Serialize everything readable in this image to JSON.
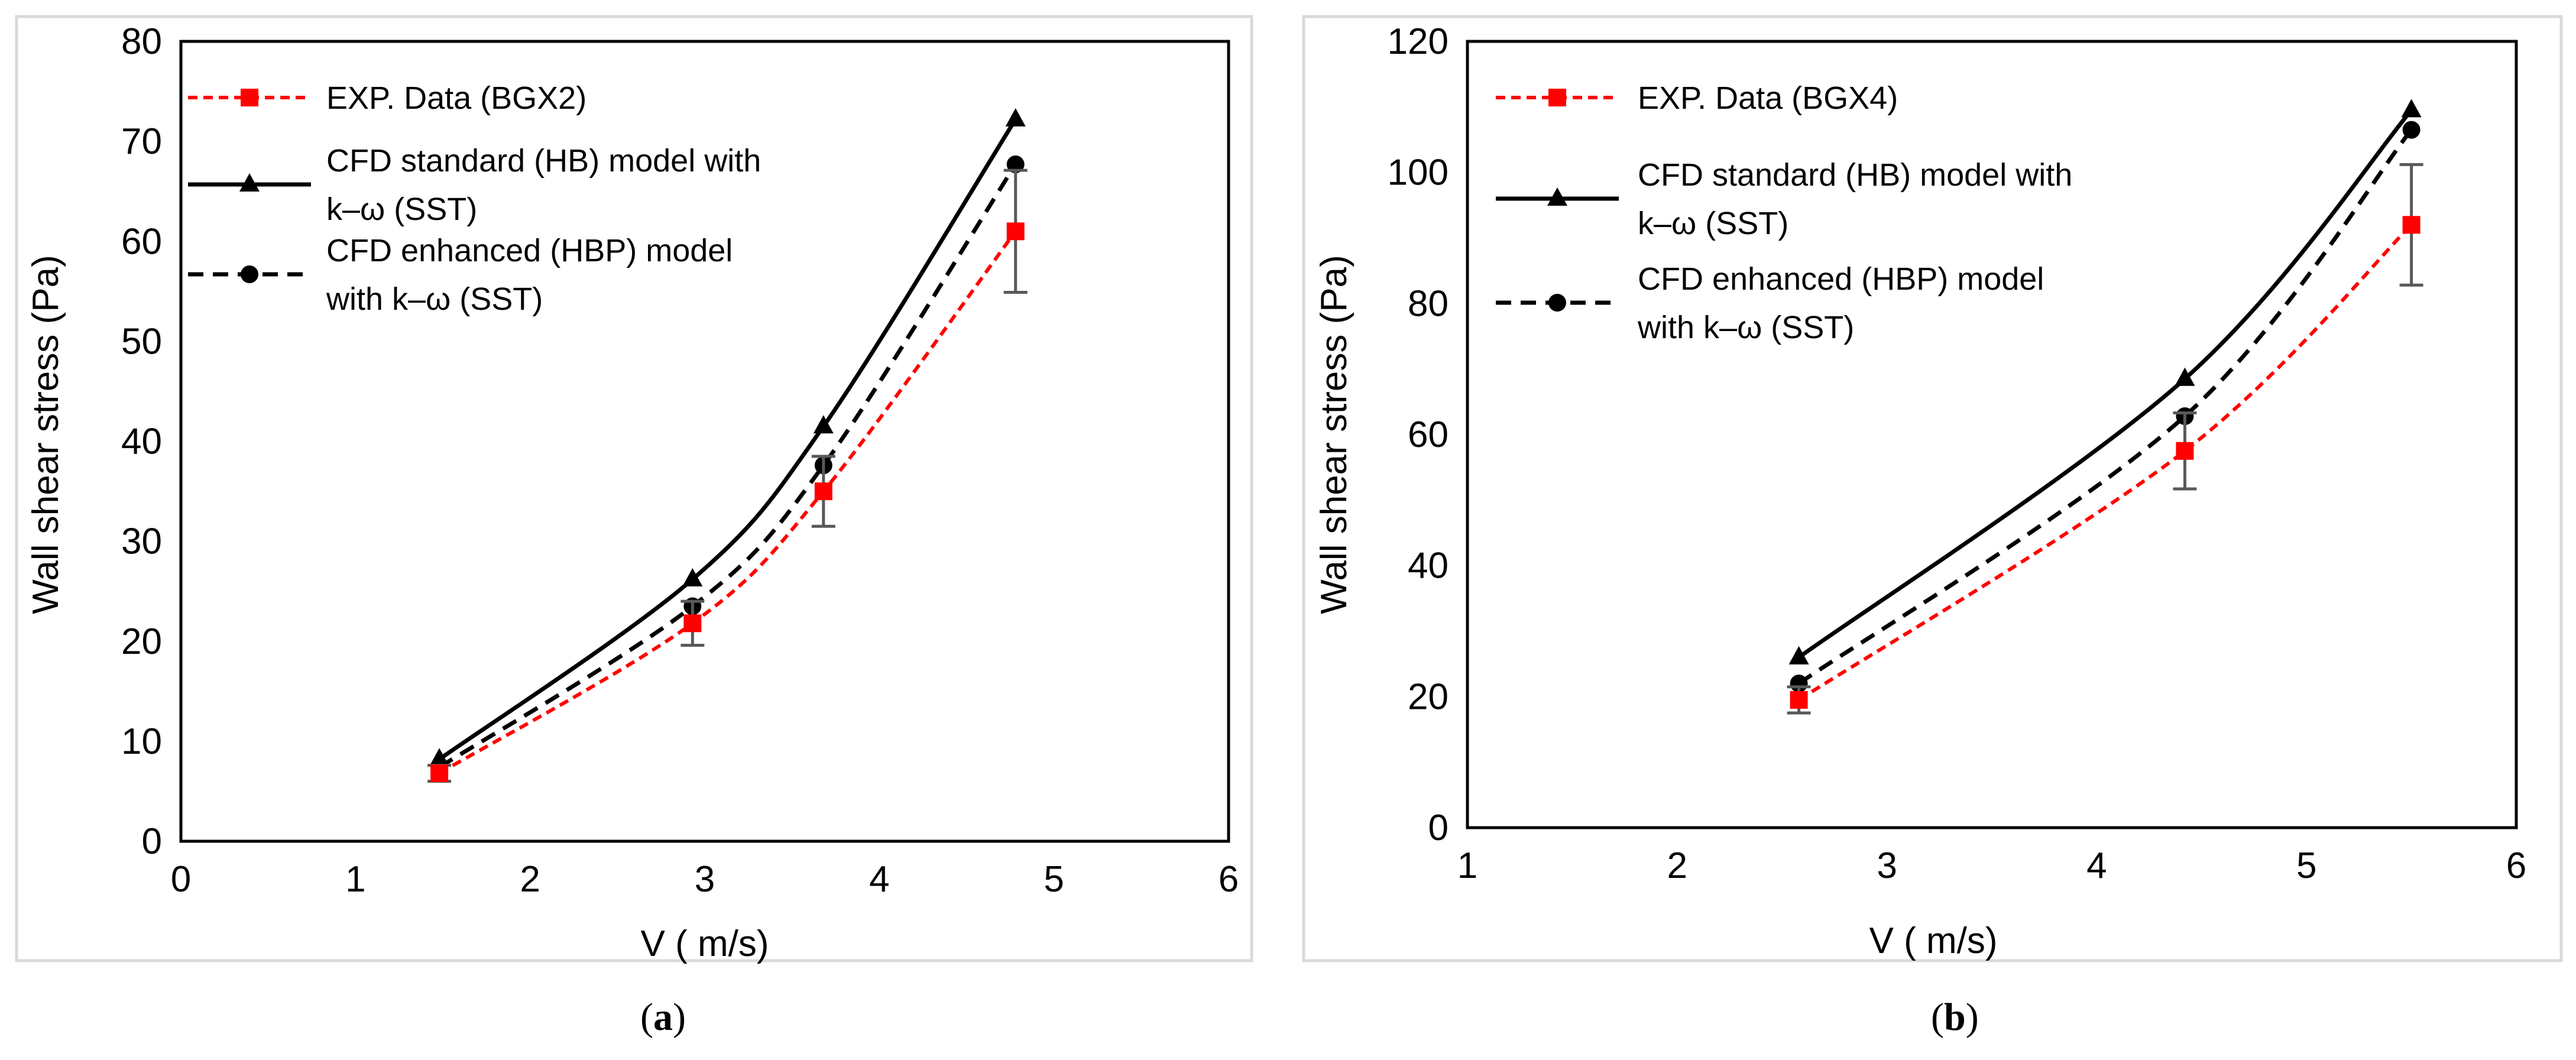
{
  "colors": {
    "exp": "#ff0000",
    "standard": "#000000",
    "enhanced": "#000000",
    "errorbar": "#595959",
    "frame": "#d9d9d9"
  },
  "chart_data": [
    {
      "type": "line",
      "caption_open": "(",
      "caption_letter": "a",
      "caption_close": ")",
      "xlabel": "V ( m/s)",
      "ylabel": "Wall shear stress (Pa)",
      "xlim": [
        0,
        6
      ],
      "ylim": [
        0,
        80
      ],
      "xticks": [
        "0",
        "1",
        "2",
        "3",
        "4",
        "5",
        "6"
      ],
      "yticks": [
        "0",
        "10",
        "20",
        "30",
        "40",
        "50",
        "60",
        "70",
        "80"
      ],
      "legend_position": "top-left",
      "series": [
        {
          "name": "EXP. Data (BGX2)",
          "legend_lines": [
            "EXP. Data (BGX2)"
          ],
          "style": "dashed",
          "color": "#ff0000",
          "marker": "square",
          "x": [
            1.48,
            2.93,
            3.68,
            4.78
          ],
          "y": [
            6.8,
            21.8,
            35.0,
            61.0
          ],
          "error": [
            0.8,
            2.2,
            3.5,
            6.1
          ]
        },
        {
          "name": "CFD standard (HB) model with k–ω (SST)",
          "legend_lines": [
            "CFD standard (HB) model with",
            "k–ω (SST)"
          ],
          "style": "solid",
          "color": "#000000",
          "marker": "triangle",
          "x": [
            1.48,
            2.93,
            3.68,
            4.78
          ],
          "y": [
            8.2,
            26.2,
            41.5,
            72.2
          ]
        },
        {
          "name": "CFD enhanced (HBP) model with k–ω (SST)",
          "legend_lines": [
            "CFD enhanced (HBP) model",
            "with k–ω (SST)"
          ],
          "style": "dashed",
          "color": "#000000",
          "marker": "circle",
          "x": [
            1.48,
            2.93,
            3.68,
            4.78
          ],
          "y": [
            7.4,
            23.5,
            37.6,
            67.7
          ]
        }
      ]
    },
    {
      "type": "line",
      "caption_open": "(",
      "caption_letter": "b",
      "caption_close": ")",
      "xlabel": "V ( m/s)",
      "ylabel": "Wall shear stress (Pa)",
      "xlim": [
        1,
        6
      ],
      "ylim": [
        0,
        120
      ],
      "xticks": [
        "1",
        "2",
        "3",
        "4",
        "5",
        "6"
      ],
      "yticks": [
        "0",
        "20",
        "40",
        "60",
        "80",
        "100",
        "120"
      ],
      "legend_position": "top-left",
      "series": [
        {
          "name": "EXP. Data (BGX4)",
          "legend_lines": [
            "EXP. Data (BGX4)"
          ],
          "style": "dashed",
          "color": "#ff0000",
          "marker": "square",
          "x": [
            2.58,
            4.42,
            5.5
          ],
          "y": [
            19.5,
            57.5,
            92.0
          ],
          "error": [
            2.0,
            5.8,
            9.2
          ]
        },
        {
          "name": "CFD standard (HB) model with k–ω (SST)",
          "legend_lines": [
            "CFD standard (HB) model with",
            "k–ω (SST)"
          ],
          "style": "solid",
          "color": "#000000",
          "marker": "triangle",
          "x": [
            2.58,
            4.42,
            5.5
          ],
          "y": [
            26.0,
            68.5,
            109.5
          ]
        },
        {
          "name": "CFD enhanced (HBP) model with k–ω (SST)",
          "legend_lines": [
            "CFD enhanced (HBP) model",
            "with k–ω (SST)"
          ],
          "style": "dashed",
          "color": "#000000",
          "marker": "circle",
          "x": [
            2.58,
            4.42,
            5.5
          ],
          "y": [
            22.0,
            62.8,
            106.5
          ]
        }
      ]
    }
  ]
}
